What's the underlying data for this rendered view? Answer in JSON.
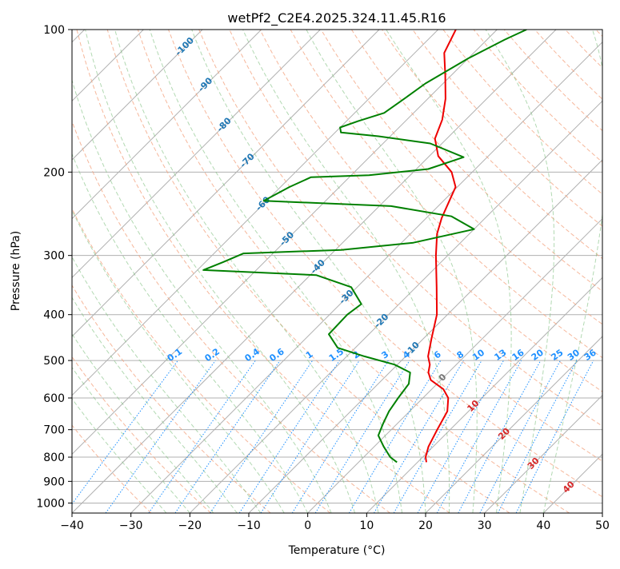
{
  "chart_data": {
    "type": "line",
    "subtype": "skew-t log-p",
    "title": "wetPf2_C2E4.2025.324.11.45.R16",
    "xlabel": "Temperature (°C)",
    "ylabel": "Pressure (hPa)",
    "xlim": [
      -40,
      50
    ],
    "ylim": [
      1050,
      100
    ],
    "y_scale": "log",
    "grid": true,
    "x_ticks": [
      -40,
      -30,
      -20,
      -10,
      0,
      10,
      20,
      30,
      40,
      50
    ],
    "x_tick_labels": [
      "−40",
      "−30",
      "−20",
      "−10",
      "0",
      "10",
      "20",
      "30",
      "40",
      "50"
    ],
    "y_ticks": [
      100,
      200,
      300,
      400,
      500,
      600,
      700,
      800,
      900,
      1000
    ],
    "y_tick_labels": [
      "100",
      "200",
      "300",
      "400",
      "500",
      "600",
      "700",
      "800",
      "900",
      "1000"
    ],
    "series": [
      {
        "role": "temperature",
        "color": "#ee0000",
        "points": [
          {
            "p": 820,
            "t": 11.5
          },
          {
            "p": 800,
            "t": 10.5
          },
          {
            "p": 760,
            "t": 9.2
          },
          {
            "p": 700,
            "t": 7.8
          },
          {
            "p": 640,
            "t": 6.4
          },
          {
            "p": 600,
            "t": 4.3
          },
          {
            "p": 575,
            "t": 2.0
          },
          {
            "p": 550,
            "t": -1.7
          },
          {
            "p": 530,
            "t": -3.4
          },
          {
            "p": 510,
            "t": -4.5
          },
          {
            "p": 490,
            "t": -6.2
          },
          {
            "p": 450,
            "t": -8.6
          },
          {
            "p": 400,
            "t": -11.8
          },
          {
            "p": 350,
            "t": -16.5
          },
          {
            "p": 300,
            "t": -22.0
          },
          {
            "p": 270,
            "t": -25.5
          },
          {
            "p": 250,
            "t": -27.4
          },
          {
            "p": 230,
            "t": -29.0
          },
          {
            "p": 215,
            "t": -30.3
          },
          {
            "p": 200,
            "t": -33.5
          },
          {
            "p": 185,
            "t": -38.5
          },
          {
            "p": 170,
            "t": -42.0
          },
          {
            "p": 155,
            "t": -44.0
          },
          {
            "p": 140,
            "t": -47.0
          },
          {
            "p": 125,
            "t": -51.0
          },
          {
            "p": 112,
            "t": -55.0
          },
          {
            "p": 100,
            "t": -57.0
          }
        ]
      },
      {
        "role": "dewpoint",
        "color": "#008000",
        "points": [
          {
            "p": 820,
            "t": 6.5
          },
          {
            "p": 800,
            "t": 4.5
          },
          {
            "p": 760,
            "t": 1.6
          },
          {
            "p": 720,
            "t": -1.2
          },
          {
            "p": 680,
            "t": -2.4
          },
          {
            "p": 640,
            "t": -3.5
          },
          {
            "p": 600,
            "t": -4.2
          },
          {
            "p": 560,
            "t": -4.8
          },
          {
            "p": 530,
            "t": -6.5
          },
          {
            "p": 510,
            "t": -10.5
          },
          {
            "p": 490,
            "t": -17.0
          },
          {
            "p": 470,
            "t": -23.0
          },
          {
            "p": 440,
            "t": -26.8
          },
          {
            "p": 400,
            "t": -27.0
          },
          {
            "p": 380,
            "t": -26.4
          },
          {
            "p": 350,
            "t": -31.0
          },
          {
            "p": 330,
            "t": -39.0
          },
          {
            "p": 322,
            "t": -59.0
          },
          {
            "p": 310,
            "t": -57.0
          },
          {
            "p": 297,
            "t": -55.0
          },
          {
            "p": 292,
            "t": -39.0
          },
          {
            "p": 282,
            "t": -28.0
          },
          {
            "p": 264,
            "t": -20.0
          },
          {
            "p": 248,
            "t": -26.0
          },
          {
            "p": 236,
            "t": -38.0
          },
          {
            "p": 230,
            "t": -60.5
          },
          {
            "p": 215,
            "t": -58.5
          },
          {
            "p": 205,
            "t": -56.5
          },
          {
            "p": 203,
            "t": -47.0
          },
          {
            "p": 197,
            "t": -38.0
          },
          {
            "p": 186,
            "t": -34.0
          },
          {
            "p": 174,
            "t": -42.0
          },
          {
            "p": 168,
            "t": -52.0
          },
          {
            "p": 165,
            "t": -59.0
          },
          {
            "p": 161,
            "t": -60.0
          },
          {
            "p": 156,
            "t": -58.0
          },
          {
            "p": 150,
            "t": -55.0
          },
          {
            "p": 140,
            "t": -54.0
          },
          {
            "p": 130,
            "t": -53.0
          },
          {
            "p": 115,
            "t": -50.0
          },
          {
            "p": 105,
            "t": -47.0
          },
          {
            "p": 100,
            "t": -45.0
          }
        ]
      }
    ],
    "isotherm_labels": [
      "-100",
      "-90",
      "-80",
      "-70",
      "-60",
      "-50",
      "-40",
      "-30",
      "-20",
      "-10",
      "0",
      "10",
      "20",
      "30",
      "40"
    ],
    "isotherm_label_colors": {
      "negative": "#1f77b4",
      "zero": "#777777",
      "positive": "#d62728"
    },
    "mixing_ratio_values": [
      0.1,
      0.2,
      0.4,
      0.6,
      1,
      1.5,
      2,
      3,
      4,
      6,
      8,
      10,
      13,
      16,
      20,
      25,
      30,
      36
    ],
    "mixing_ratio_labels": [
      "0.1",
      "0.2",
      "0.4",
      "0.6",
      "1",
      "1.5",
      "2",
      "3",
      "4",
      "6",
      "8",
      "10",
      "13",
      "16",
      "20",
      "25",
      "30",
      "36"
    ],
    "mixing_ratio_color": "#1e90ff"
  }
}
